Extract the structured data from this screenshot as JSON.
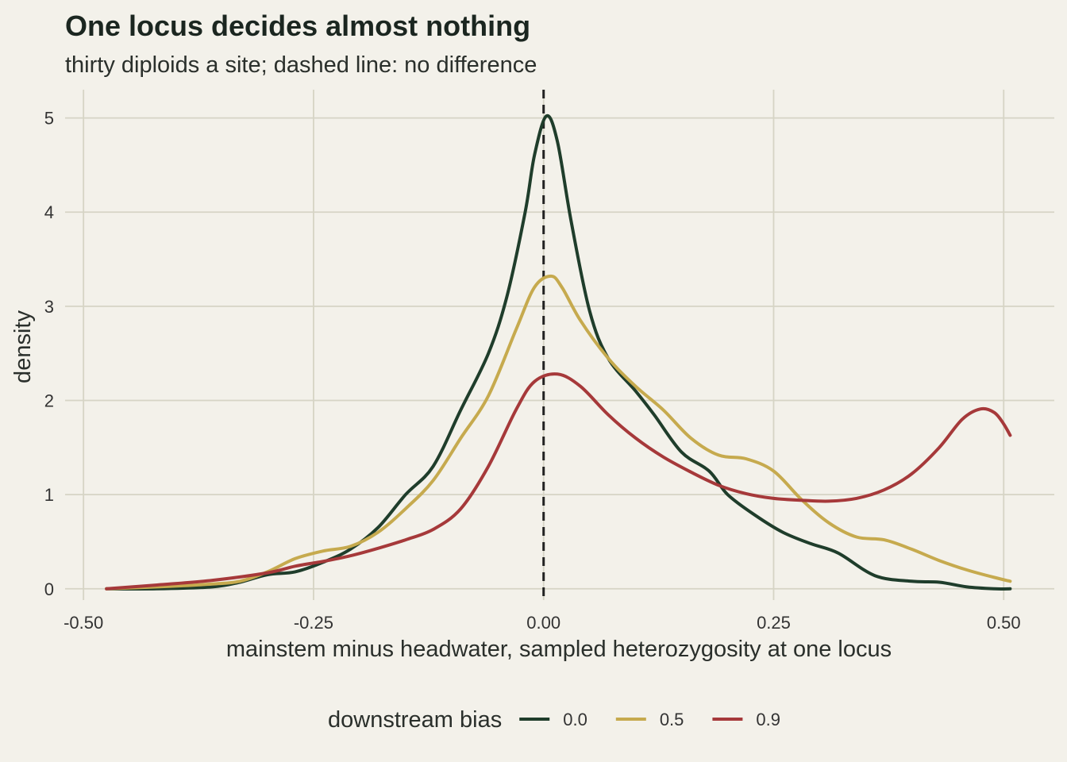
{
  "chart_data": {
    "type": "line",
    "title": "One locus decides almost nothing",
    "subtitle": "thirty diploids a site; dashed line: no difference",
    "xlabel": "mainstem minus headwater, sampled heterozygosity at one locus",
    "ylabel": "density",
    "xlim": [
      -0.52,
      0.555
    ],
    "ylim": [
      -0.12,
      5.3
    ],
    "x_ticks": [
      -0.5,
      -0.25,
      0.0,
      0.25,
      0.5
    ],
    "x_tick_labels": [
      "-0.50",
      "-0.25",
      "0.00",
      "0.25",
      "0.50"
    ],
    "y_ticks": [
      0,
      1,
      2,
      3,
      4,
      5
    ],
    "y_tick_labels": [
      "0",
      "1",
      "2",
      "3",
      "4",
      "5"
    ],
    "reference_line": {
      "x": 0.0,
      "style": "dashed",
      "color": "#222222"
    },
    "grid": true,
    "legend": {
      "title": "downstream bias",
      "position": "bottom"
    },
    "series": [
      {
        "name": "0.0",
        "color": "#1F3D2B",
        "points": [
          [
            -0.475,
            0.0
          ],
          [
            -0.42,
            0.0
          ],
          [
            -0.36,
            0.02
          ],
          [
            -0.33,
            0.07
          ],
          [
            -0.3,
            0.15
          ],
          [
            -0.27,
            0.18
          ],
          [
            -0.24,
            0.28
          ],
          [
            -0.21,
            0.42
          ],
          [
            -0.18,
            0.65
          ],
          [
            -0.15,
            1.0
          ],
          [
            -0.12,
            1.3
          ],
          [
            -0.09,
            1.9
          ],
          [
            -0.06,
            2.5
          ],
          [
            -0.04,
            3.1
          ],
          [
            -0.02,
            4.0
          ],
          [
            -0.01,
            4.6
          ],
          [
            0.003,
            5.02
          ],
          [
            0.015,
            4.75
          ],
          [
            0.03,
            3.9
          ],
          [
            0.05,
            2.95
          ],
          [
            0.07,
            2.45
          ],
          [
            0.1,
            2.1
          ],
          [
            0.12,
            1.85
          ],
          [
            0.15,
            1.45
          ],
          [
            0.18,
            1.25
          ],
          [
            0.2,
            1.0
          ],
          [
            0.23,
            0.78
          ],
          [
            0.26,
            0.6
          ],
          [
            0.29,
            0.48
          ],
          [
            0.32,
            0.38
          ],
          [
            0.36,
            0.14
          ],
          [
            0.4,
            0.08
          ],
          [
            0.43,
            0.07
          ],
          [
            0.46,
            0.02
          ],
          [
            0.49,
            0.0
          ],
          [
            0.507,
            0.0
          ]
        ]
      },
      {
        "name": "0.5",
        "color": "#C6AA4E",
        "points": [
          [
            -0.475,
            0.0
          ],
          [
            -0.42,
            0.02
          ],
          [
            -0.36,
            0.05
          ],
          [
            -0.33,
            0.08
          ],
          [
            -0.3,
            0.18
          ],
          [
            -0.27,
            0.32
          ],
          [
            -0.24,
            0.4
          ],
          [
            -0.21,
            0.45
          ],
          [
            -0.18,
            0.6
          ],
          [
            -0.15,
            0.85
          ],
          [
            -0.12,
            1.15
          ],
          [
            -0.09,
            1.6
          ],
          [
            -0.06,
            2.05
          ],
          [
            -0.03,
            2.75
          ],
          [
            -0.01,
            3.2
          ],
          [
            0.008,
            3.32
          ],
          [
            0.02,
            3.2
          ],
          [
            0.04,
            2.85
          ],
          [
            0.07,
            2.45
          ],
          [
            0.1,
            2.15
          ],
          [
            0.13,
            1.9
          ],
          [
            0.16,
            1.6
          ],
          [
            0.19,
            1.42
          ],
          [
            0.22,
            1.38
          ],
          [
            0.25,
            1.25
          ],
          [
            0.28,
            0.95
          ],
          [
            0.31,
            0.7
          ],
          [
            0.34,
            0.55
          ],
          [
            0.37,
            0.52
          ],
          [
            0.4,
            0.42
          ],
          [
            0.43,
            0.3
          ],
          [
            0.46,
            0.2
          ],
          [
            0.49,
            0.12
          ],
          [
            0.507,
            0.08
          ]
        ]
      },
      {
        "name": "0.9",
        "color": "#A6393A",
        "points": [
          [
            -0.475,
            0.0
          ],
          [
            -0.42,
            0.04
          ],
          [
            -0.36,
            0.09
          ],
          [
            -0.3,
            0.17
          ],
          [
            -0.27,
            0.24
          ],
          [
            -0.24,
            0.29
          ],
          [
            -0.21,
            0.35
          ],
          [
            -0.18,
            0.43
          ],
          [
            -0.15,
            0.52
          ],
          [
            -0.12,
            0.63
          ],
          [
            -0.09,
            0.85
          ],
          [
            -0.06,
            1.3
          ],
          [
            -0.03,
            1.9
          ],
          [
            -0.01,
            2.2
          ],
          [
            0.015,
            2.28
          ],
          [
            0.04,
            2.15
          ],
          [
            0.07,
            1.85
          ],
          [
            0.1,
            1.6
          ],
          [
            0.13,
            1.4
          ],
          [
            0.16,
            1.24
          ],
          [
            0.19,
            1.1
          ],
          [
            0.22,
            1.01
          ],
          [
            0.25,
            0.96
          ],
          [
            0.28,
            0.94
          ],
          [
            0.31,
            0.93
          ],
          [
            0.34,
            0.96
          ],
          [
            0.37,
            1.05
          ],
          [
            0.4,
            1.22
          ],
          [
            0.43,
            1.5
          ],
          [
            0.455,
            1.8
          ],
          [
            0.475,
            1.91
          ],
          [
            0.49,
            1.87
          ],
          [
            0.5,
            1.75
          ],
          [
            0.507,
            1.63
          ]
        ]
      }
    ]
  }
}
